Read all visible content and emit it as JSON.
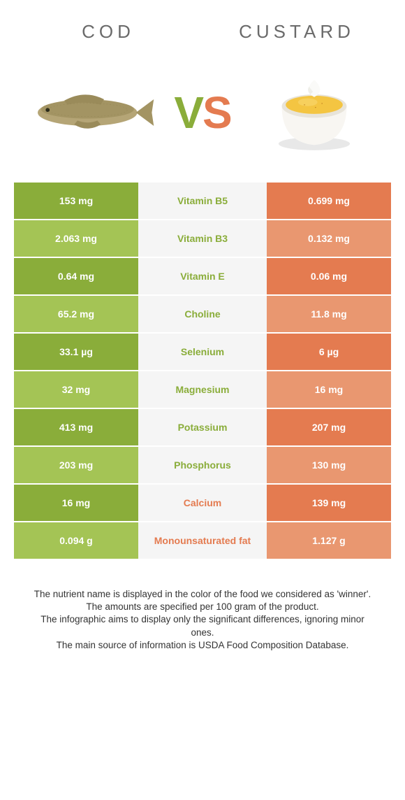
{
  "colors": {
    "green": "#8aad3a",
    "green_light": "#a4c455",
    "orange": "#e47b50",
    "orange_light": "#e99770",
    "mid_bg": "#f5f5f5",
    "header_text": "#6a6a6a"
  },
  "header": {
    "left": "COD",
    "right": "CUSTARD"
  },
  "vs": {
    "v": "V",
    "s": "S"
  },
  "rows": [
    {
      "left": "153 mg",
      "mid": "Vitamin B5",
      "right": "0.699 mg",
      "winner": "left"
    },
    {
      "left": "2.063 mg",
      "mid": "Vitamin B3",
      "right": "0.132 mg",
      "winner": "left"
    },
    {
      "left": "0.64 mg",
      "mid": "Vitamin E",
      "right": "0.06 mg",
      "winner": "left"
    },
    {
      "left": "65.2 mg",
      "mid": "Choline",
      "right": "11.8 mg",
      "winner": "left"
    },
    {
      "left": "33.1 µg",
      "mid": "Selenium",
      "right": "6 µg",
      "winner": "left"
    },
    {
      "left": "32 mg",
      "mid": "Magnesium",
      "right": "16 mg",
      "winner": "left"
    },
    {
      "left": "413 mg",
      "mid": "Potassium",
      "right": "207 mg",
      "winner": "left"
    },
    {
      "left": "203 mg",
      "mid": "Phosphorus",
      "right": "130 mg",
      "winner": "left"
    },
    {
      "left": "16 mg",
      "mid": "Calcium",
      "right": "139 mg",
      "winner": "right"
    },
    {
      "left": "0.094 g",
      "mid": "Monounsaturated fat",
      "right": "1.127 g",
      "winner": "right"
    }
  ],
  "footer": "The nutrient name is displayed in the color of the food we considered as 'winner'.\nThe amounts are specified per 100 gram of the product.\nThe infographic aims to display only the significant differences, ignoring minor ones.\nThe main source of information is USDA Food Composition Database."
}
